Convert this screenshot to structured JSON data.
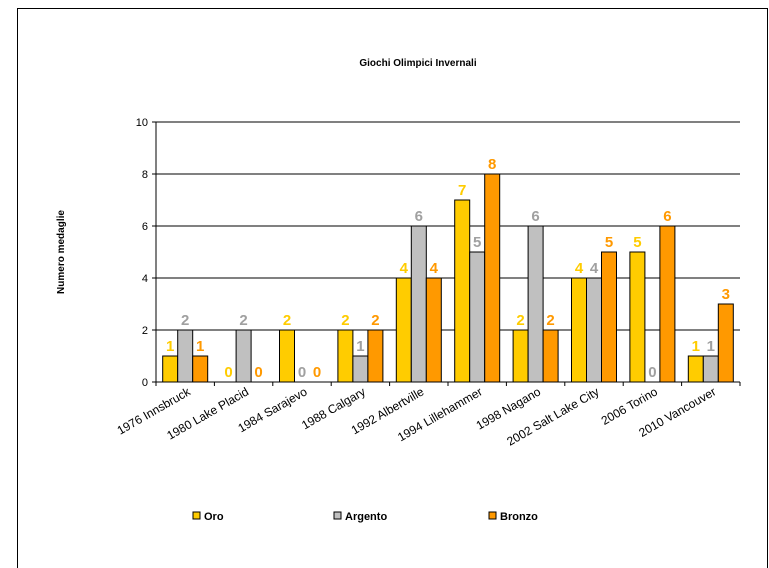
{
  "chart_data": {
    "type": "bar",
    "title": "Giochi Olimpici Invernali",
    "xlabel": "",
    "ylabel": "Numero medaglie",
    "ylim": [
      0,
      10
    ],
    "yticks": [
      0,
      2,
      4,
      6,
      8,
      10
    ],
    "grid": true,
    "legend_position": "bottom",
    "categories": [
      "1976 Innsbruck",
      "1980 Lake Placid",
      "1984 Sarajevo",
      "1988 Calgary",
      "1992 Albertville",
      "1994 Lillehammer",
      "1998 Nagano",
      "2002 Salt Lake City",
      "2006 Torino",
      "2010 Vancouver"
    ],
    "series": [
      {
        "name": "Oro",
        "color": "#FFCC00",
        "label_color": "#FFCC00",
        "values": [
          1,
          0,
          2,
          2,
          4,
          7,
          2,
          4,
          5,
          1
        ]
      },
      {
        "name": "Argento",
        "color": "#C0C0C0",
        "label_color": "#A0A0A0",
        "values": [
          2,
          2,
          0,
          1,
          6,
          5,
          6,
          4,
          0,
          1
        ]
      },
      {
        "name": "Bronzo",
        "color": "#FF9900",
        "label_color": "#FF9900",
        "values": [
          1,
          0,
          0,
          2,
          4,
          8,
          2,
          5,
          6,
          3
        ]
      }
    ]
  }
}
